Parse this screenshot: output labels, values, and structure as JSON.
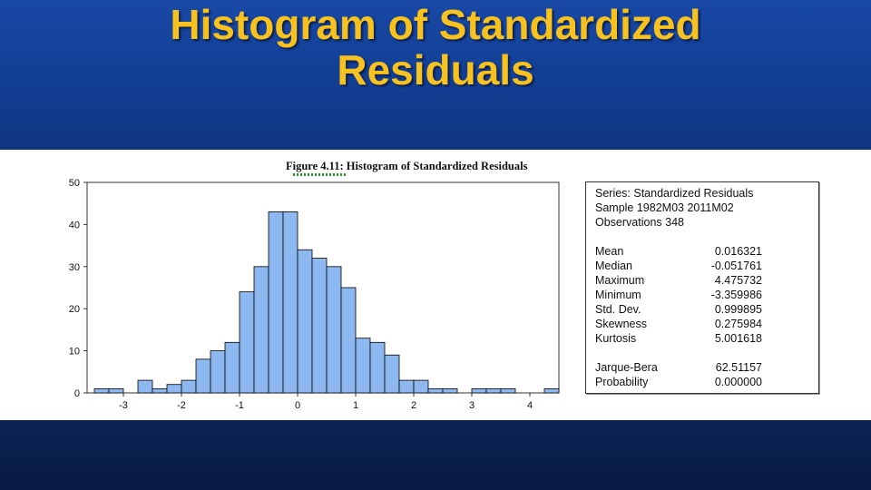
{
  "slide": {
    "title_line1": "Histogram of Standardized",
    "title_line2": "Residuals",
    "title_color": "#f7c21d",
    "background_color": "#123e93"
  },
  "figure": {
    "caption": "Figure 4.11: Histogram of Standardized Residuals"
  },
  "stats": {
    "series": "Series: Standardized Residuals",
    "sample": "Sample 1982M03 2011M02",
    "observations": "Observations 348",
    "rows": [
      {
        "label": "Mean",
        "value": "0.016321"
      },
      {
        "label": "Median",
        "value": "-0.051761"
      },
      {
        "label": "Maximum",
        "value": "4.475732"
      },
      {
        "label": "Minimum",
        "value": "-3.359986"
      },
      {
        "label": "Std. Dev.",
        "value": "0.999895"
      },
      {
        "label": "Skewness",
        "value": "0.275984"
      },
      {
        "label": "Kurtosis",
        "value": "5.001618"
      }
    ],
    "jb_rows": [
      {
        "label": "Jarque-Bera",
        "value": "62.51157"
      },
      {
        "label": "Probability",
        "value": "0.000000"
      }
    ]
  },
  "chart_data": {
    "type": "bar",
    "bin_width": 0.25,
    "bins_start": [
      -3.5,
      -3.25,
      -3.0,
      -2.75,
      -2.5,
      -2.25,
      -2.0,
      -1.75,
      -1.5,
      -1.25,
      -1.0,
      -0.75,
      -0.5,
      -0.25,
      0.0,
      0.25,
      0.5,
      0.75,
      1.0,
      1.25,
      1.5,
      1.75,
      2.0,
      2.25,
      2.5,
      2.75,
      3.0,
      3.25,
      3.5,
      3.75,
      4.0,
      4.25
    ],
    "values": [
      1,
      1,
      0,
      3,
      1,
      2,
      3,
      8,
      10,
      12,
      24,
      30,
      43,
      43,
      34,
      32,
      30,
      25,
      13,
      12,
      9,
      3,
      3,
      1,
      1,
      0,
      1,
      1,
      1,
      0,
      0,
      1
    ],
    "xlim": [
      -3.625,
      4.5
    ],
    "ylim": [
      0,
      50
    ],
    "x_ticks": [
      -3,
      -2,
      -1,
      0,
      1,
      2,
      3,
      4
    ],
    "x_tick_labels": [
      "-3",
      "-2",
      "-1",
      "0",
      "1",
      "2",
      "3",
      "4"
    ],
    "y_ticks": [
      0,
      10,
      20,
      30,
      40,
      50
    ],
    "y_tick_labels": [
      "0",
      "10",
      "20",
      "30",
      "40",
      "50"
    ],
    "bar_color": "#8db8f0",
    "bar_edge_color": "#000000"
  }
}
